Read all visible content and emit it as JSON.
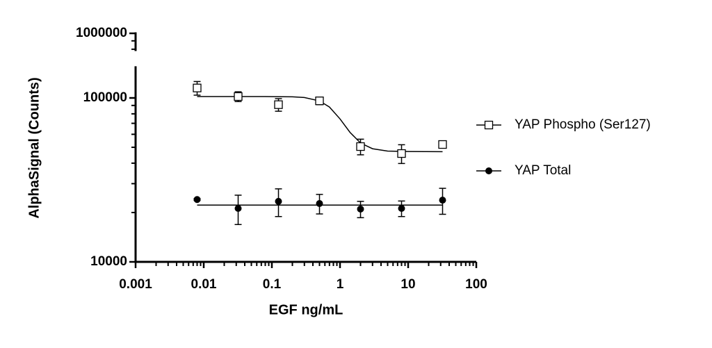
{
  "chart_data": {
    "type": "scatter",
    "x_label": "EGF ng/mL",
    "y_label": "AlphaSignal (Counts)",
    "x_scale": "log",
    "y_scale": "log",
    "xlim": [
      0.001,
      100
    ],
    "xticks": [
      0.001,
      0.01,
      0.1,
      1,
      10,
      100
    ],
    "xminorticks": [
      0.002,
      0.003,
      0.004,
      0.005,
      0.006,
      0.007,
      0.008,
      0.009,
      0.02,
      0.03,
      0.04,
      0.05,
      0.06,
      0.07,
      0.08,
      0.09,
      0.2,
      0.3,
      0.4,
      0.5,
      0.6,
      0.7,
      0.8,
      0.9,
      2,
      3,
      4,
      5,
      6,
      7,
      8,
      9,
      20,
      30,
      40,
      50,
      60,
      70,
      80,
      90
    ],
    "ylim": [
      10000,
      1000000
    ],
    "y_break": [
      156000,
      780000
    ],
    "yticks": [
      10000,
      100000,
      1000000
    ],
    "yminorticks": [
      20000,
      30000,
      40000,
      50000,
      60000,
      70000,
      80000,
      90000,
      800000,
      900000
    ],
    "legend": "right",
    "series": [
      {
        "name": "YAP Phospho (Ser127)",
        "color": "#000000",
        "marker": "open-square",
        "x": [
          0.008,
          0.032,
          0.125,
          0.5,
          2,
          8,
          32
        ],
        "values": [
          115000,
          102000,
          91000,
          96000,
          50500,
          45800,
          52000
        ],
        "errors": [
          11000,
          7000,
          8000,
          5000,
          5500,
          6000,
          1500
        ],
        "fit_x": [
          0.008,
          0.03,
          0.1,
          0.2,
          0.3,
          0.5,
          0.7,
          1,
          1.4,
          2,
          3,
          5,
          10,
          32
        ],
        "fit_values": [
          102000,
          102000,
          101900,
          101600,
          100600,
          95900,
          88000,
          74500,
          61700,
          53100,
          49000,
          47400,
          47100,
          47000
        ]
      },
      {
        "name": "YAP Total",
        "color": "#000000",
        "marker": "filled-circle",
        "x": [
          0.008,
          0.032,
          0.125,
          0.5,
          2,
          8,
          32
        ],
        "values": [
          24000,
          21200,
          23400,
          22700,
          21000,
          21200,
          23800
        ],
        "errors": [
          300,
          4300,
          4500,
          3100,
          2400,
          2300,
          4300
        ],
        "fit_x": [
          0.008,
          32
        ],
        "fit_values": [
          22200,
          22200
        ]
      }
    ]
  }
}
